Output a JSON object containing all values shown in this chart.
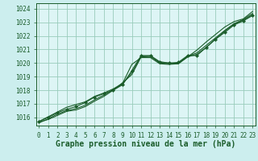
{
  "title": "Graphe pression niveau de la mer (hPa)",
  "bg_color": "#cceeee",
  "plot_bg_color": "#ddf5f5",
  "grid_color": "#99ccbb",
  "line_color": "#1a5c2a",
  "marker_color": "#1a5c2a",
  "xlim": [
    -0.3,
    23.3
  ],
  "ylim": [
    1015.4,
    1024.4
  ],
  "yticks": [
    1016,
    1017,
    1018,
    1019,
    1020,
    1021,
    1022,
    1023,
    1024
  ],
  "xticks": [
    0,
    1,
    2,
    3,
    4,
    5,
    6,
    7,
    8,
    9,
    10,
    11,
    12,
    13,
    14,
    15,
    16,
    17,
    18,
    19,
    20,
    21,
    22,
    23
  ],
  "series": [
    [
      1015.65,
      1015.85,
      1016.15,
      1016.45,
      1016.55,
      1016.8,
      1017.2,
      1017.55,
      1018.0,
      1018.55,
      1019.15,
      1020.45,
      1020.5,
      1020.05,
      1020.0,
      1019.95,
      1020.45,
      1020.95,
      1021.55,
      1022.1,
      1022.65,
      1023.05,
      1023.25,
      1023.8
    ],
    [
      1015.7,
      1016.0,
      1016.35,
      1016.6,
      1016.8,
      1017.1,
      1017.5,
      1017.75,
      1018.0,
      1018.4,
      1019.45,
      1020.55,
      1020.55,
      1020.1,
      1020.0,
      1020.05,
      1020.55,
      1020.55,
      1021.15,
      1021.75,
      1022.25,
      1022.8,
      1023.1,
      1023.5
    ],
    [
      1015.7,
      1016.05,
      1016.4,
      1016.75,
      1016.95,
      1017.15,
      1017.55,
      1017.8,
      1018.1,
      1018.5,
      1019.9,
      1020.4,
      1020.4,
      1019.95,
      1019.9,
      1019.95,
      1020.45,
      1020.65,
      1021.15,
      1021.75,
      1022.35,
      1022.85,
      1023.15,
      1023.55
    ],
    [
      1015.6,
      1015.9,
      1016.25,
      1016.5,
      1016.65,
      1016.9,
      1017.3,
      1017.65,
      1018.05,
      1018.45,
      1019.3,
      1020.5,
      1020.5,
      1020.0,
      1019.95,
      1020.0,
      1020.5,
      1020.75,
      1021.3,
      1021.85,
      1022.4,
      1022.9,
      1023.2,
      1023.65
    ]
  ],
  "marker_series_idx": 1,
  "tick_fontsize": 5.5,
  "label_fontsize": 7.0
}
